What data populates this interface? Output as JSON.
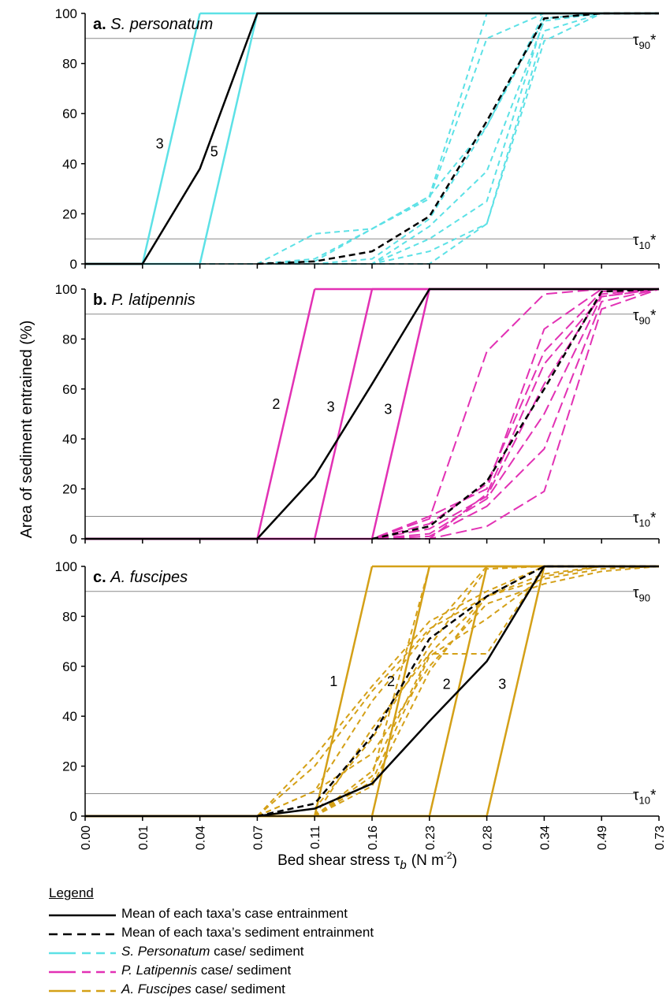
{
  "figure": {
    "x_axis_label": "Bed shear stress τ",
    "x_axis_label_sub": "b",
    "x_axis_units": "(N m",
    "x_axis_units_sup": "-2",
    "x_axis_units_close": ")",
    "y_axis_label": "Area of sediment entrained (%)"
  },
  "legend": {
    "title": "Legend",
    "items": [
      {
        "style": "mean-case",
        "color": "#000000",
        "text_italic": "",
        "text": "Mean of each taxa’s case entrainment"
      },
      {
        "style": "mean-sediment",
        "color": "#000000",
        "text_italic": "",
        "text": "Mean of each taxa’s sediment entrainment"
      },
      {
        "style": "taxa",
        "color": "#5ce1e6",
        "text_italic": "S. Personatum",
        "text": " case/ sediment"
      },
      {
        "style": "taxa",
        "color": "#e231b4",
        "text_italic": "P. Latipennis",
        "text": " case/ sediment"
      },
      {
        "style": "taxa",
        "color": "#d4a017",
        "text_italic": "A. Fuscipes",
        "text": " case/ sediment"
      }
    ]
  },
  "chart_data": [
    {
      "type": "line",
      "panel_letter": "a.",
      "title": "S. personatum",
      "color": "#5ce1e6",
      "categories": [
        "0.00",
        "0.01",
        "0.04",
        "0.07",
        "0.11",
        "0.16",
        "0.23",
        "0.28",
        "0.34",
        "0.49",
        "0.73"
      ],
      "ylim": [
        0,
        100
      ],
      "yticks": [
        0,
        20,
        40,
        60,
        80,
        100
      ],
      "grid": false,
      "thresholds": [
        {
          "y": 90,
          "label": "τ",
          "sub": "90",
          "star": "*"
        },
        {
          "y": 10,
          "label": "τ",
          "sub": "10",
          "star": "*"
        }
      ],
      "case_lines": [
        {
          "label": "3",
          "x0": 1,
          "x1": 2,
          "label_x": 1.3,
          "label_y": 46
        },
        {
          "label": "5",
          "x0": 2,
          "x1": 3,
          "label_x": 2.25,
          "label_y": 43
        }
      ],
      "mean_case": [
        0,
        0,
        38,
        100,
        100,
        100,
        100,
        100,
        100,
        100,
        100
      ],
      "mean_case_start": 1,
      "mean_sediment": [
        null,
        null,
        null,
        0,
        1,
        5,
        19,
        57,
        98,
        100,
        100
      ],
      "sediment_series": [
        [
          null,
          null,
          null,
          0,
          12,
          14,
          27,
          55,
          100,
          100,
          100
        ],
        [
          null,
          null,
          null,
          0,
          1,
          14,
          27,
          100,
          100,
          100,
          100
        ],
        [
          null,
          null,
          null,
          0,
          2,
          14,
          26,
          90,
          100,
          100,
          100
        ],
        [
          null,
          null,
          null,
          0,
          0,
          2,
          18,
          55,
          98,
          100,
          100
        ],
        [
          null,
          null,
          null,
          0,
          0,
          0,
          15,
          37,
          97,
          100,
          100
        ],
        [
          null,
          null,
          null,
          0,
          0,
          0,
          10,
          25,
          98,
          100,
          100
        ],
        [
          null,
          null,
          null,
          0,
          0,
          0,
          5,
          16,
          89,
          100,
          100
        ],
        [
          null,
          null,
          null,
          0,
          0,
          0,
          0,
          16,
          93,
          100,
          100
        ]
      ],
      "dashed_zero_start": 2
    },
    {
      "type": "line",
      "panel_letter": "b.",
      "title": "P. latipennis",
      "color": "#e231b4",
      "categories": [
        "0.00",
        "0.01",
        "0.04",
        "0.07",
        "0.11",
        "0.16",
        "0.23",
        "0.28",
        "0.34",
        "0.49",
        "0.73"
      ],
      "ylim": [
        0,
        100
      ],
      "yticks": [
        0,
        20,
        40,
        60,
        80,
        100
      ],
      "grid": false,
      "thresholds": [
        {
          "y": 90,
          "label": "τ",
          "sub": "90",
          "star": "*"
        },
        {
          "y": 9,
          "label": "τ",
          "sub": "10",
          "star": "*"
        }
      ],
      "case_lines": [
        {
          "label": "2",
          "x0": 3,
          "x1": 4,
          "label_x": 3.33,
          "label_y": 52
        },
        {
          "label": "3",
          "x0": 4,
          "x1": 5,
          "label_x": 4.28,
          "label_y": 51
        },
        {
          "label": "3",
          "x0": 5,
          "x1": 6,
          "label_x": 5.28,
          "label_y": 50
        }
      ],
      "mean_case": [
        0,
        0,
        0,
        0,
        25,
        62,
        100,
        100,
        100,
        100,
        100
      ],
      "mean_case_start": 0,
      "mean_sediment": [
        null,
        null,
        null,
        null,
        null,
        0,
        5,
        23,
        60,
        99,
        100
      ],
      "sediment_series": [
        [
          null,
          null,
          null,
          null,
          null,
          0,
          8,
          75,
          98,
          100,
          100
        ],
        [
          null,
          null,
          null,
          null,
          null,
          0,
          9,
          20,
          84,
          100,
          100
        ],
        [
          null,
          null,
          null,
          null,
          null,
          0,
          6,
          22,
          75,
          99,
          100
        ],
        [
          null,
          null,
          null,
          null,
          null,
          0,
          4,
          17,
          62,
          98,
          100
        ],
        [
          null,
          null,
          null,
          null,
          null,
          0,
          2,
          16,
          50,
          97,
          100
        ],
        [
          null,
          null,
          null,
          null,
          null,
          0,
          1,
          13,
          36,
          95,
          100
        ],
        [
          null,
          null,
          null,
          null,
          null,
          0,
          0,
          5,
          19,
          92,
          100
        ],
        [
          null,
          null,
          null,
          null,
          null,
          0,
          0,
          18,
          70,
          97,
          100
        ]
      ],
      "dashed_zero_start": 4
    },
    {
      "type": "line",
      "panel_letter": "c.",
      "title": "A. fuscipes",
      "color": "#d4a017",
      "categories": [
        "0.00",
        "0.01",
        "0.04",
        "0.07",
        "0.11",
        "0.16",
        "0.23",
        "0.28",
        "0.34",
        "0.49",
        "0.73"
      ],
      "ylim": [
        0,
        100
      ],
      "yticks": [
        0,
        20,
        40,
        60,
        80,
        100
      ],
      "grid": false,
      "thresholds": [
        {
          "y": 90,
          "label": "τ",
          "sub": "90",
          "star": ""
        },
        {
          "y": 9,
          "label": "τ",
          "sub": "10",
          "star": "*"
        }
      ],
      "case_lines": [
        {
          "label": "1",
          "x0": 4,
          "x1": 5,
          "label_x": 4.33,
          "label_y": 52
        },
        {
          "label": "2",
          "x0": 5,
          "x1": 6,
          "label_x": 5.33,
          "label_y": 52
        },
        {
          "label": "2",
          "x0": 6,
          "x1": 7,
          "label_x": 6.3,
          "label_y": 51
        },
        {
          "label": "3",
          "x0": 7,
          "x1": 8,
          "label_x": 7.27,
          "label_y": 51
        }
      ],
      "mean_case": [
        0,
        0,
        0,
        0,
        3,
        13,
        38,
        62,
        100,
        100,
        100
      ],
      "mean_case_start": 0,
      "mean_sediment": [
        null,
        null,
        null,
        0,
        5,
        32,
        71,
        88,
        100,
        100,
        100
      ],
      "sediment_series": [
        [
          null,
          null,
          null,
          0,
          24,
          52,
          78,
          90,
          100,
          100,
          100
        ],
        [
          null,
          null,
          null,
          0,
          20,
          50,
          75,
          88,
          100,
          100,
          100
        ],
        [
          null,
          null,
          null,
          0,
          10,
          46,
          74,
          100,
          100,
          100,
          100
        ],
        [
          null,
          null,
          null,
          0,
          3,
          31,
          68,
          99,
          100,
          100,
          100
        ],
        [
          null,
          null,
          null,
          0,
          0,
          18,
          65,
          65,
          100,
          100,
          100
        ],
        [
          null,
          null,
          null,
          0,
          0,
          16,
          100,
          100,
          100,
          100,
          100
        ],
        [
          null,
          null,
          null,
          0,
          0,
          14,
          64,
          79,
          96,
          100,
          100
        ],
        [
          null,
          null,
          null,
          0,
          0,
          12,
          58,
          88,
          97,
          100,
          100
        ],
        [
          null,
          null,
          null,
          null,
          0,
          35,
          65,
          88,
          95,
          99,
          100
        ],
        [
          null,
          null,
          null,
          0,
          10,
          25,
          60,
          85,
          93,
          98,
          100
        ]
      ],
      "sediment_start_override": [
        null,
        null,
        null,
        null,
        null,
        null,
        null,
        null,
        4,
        3
      ],
      "dashed_zero_start": 3
    }
  ]
}
